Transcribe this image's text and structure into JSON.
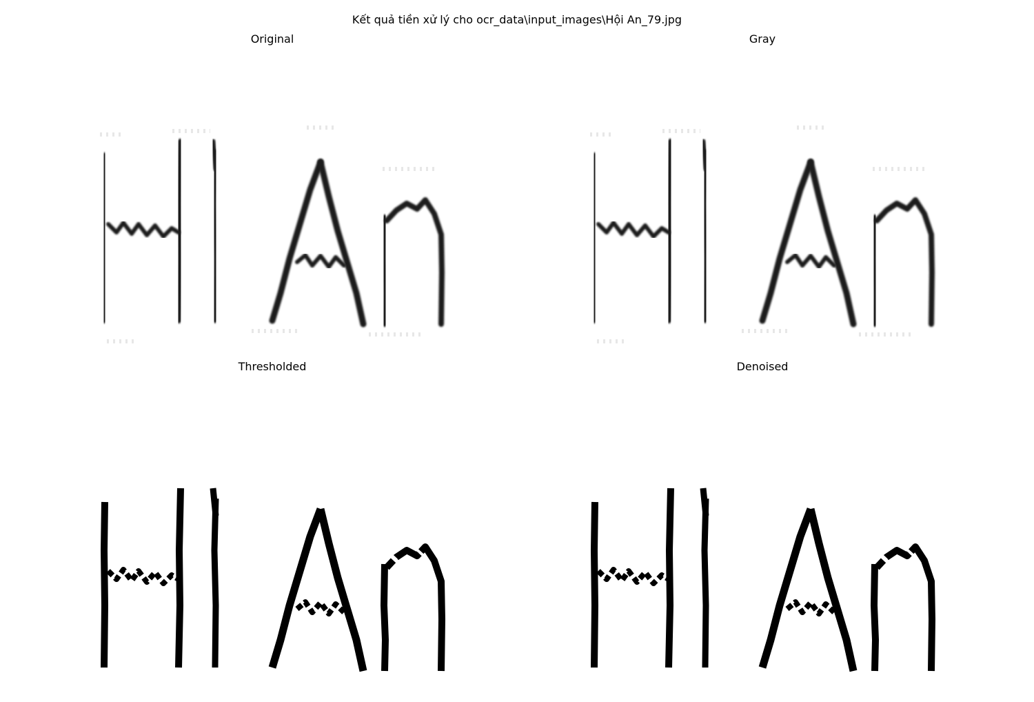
{
  "figure": {
    "suptitle": "Kết quả tiền xử lý cho ocr_data\\input_images\\Hội An_79.jpg"
  },
  "panels": [
    {
      "title": "Original",
      "mode": "soft"
    },
    {
      "title": "Gray",
      "mode": "soft"
    },
    {
      "title": "Thresholded",
      "mode": "binary"
    },
    {
      "title": "Denoised",
      "mode": "binary"
    }
  ],
  "image_text": "Hi An",
  "colors": {
    "ink": "#1a1a1a",
    "binary": "#000000",
    "background": "#ffffff",
    "ghost": "#d0d0d0"
  }
}
